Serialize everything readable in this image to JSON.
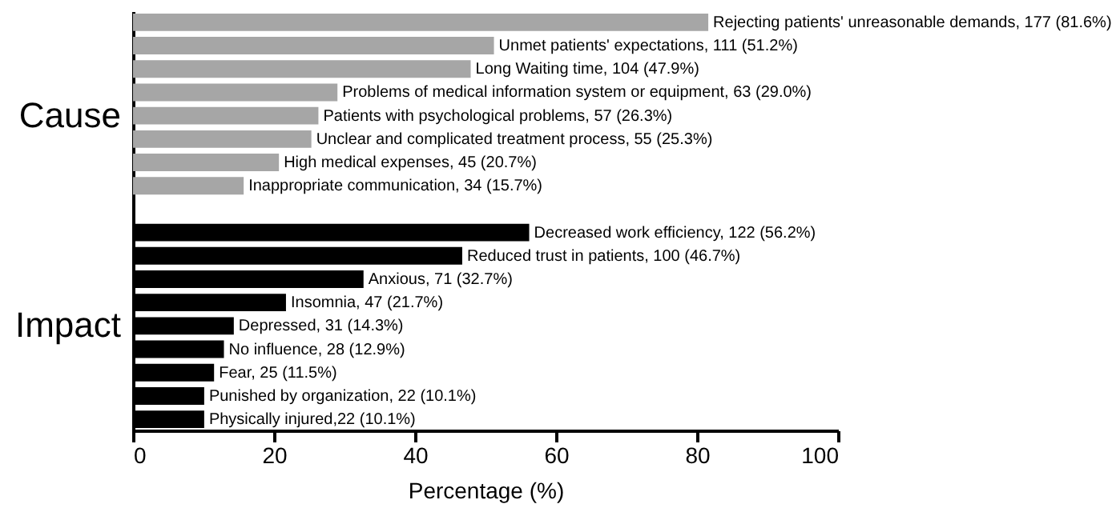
{
  "chart_data": {
    "type": "bar",
    "orientation": "horizontal",
    "xlabel": "Percentage (%)",
    "xlim": [
      0,
      100
    ],
    "xticks": [
      0,
      20,
      40,
      60,
      80,
      100
    ],
    "grid": false,
    "categories": [
      null,
      null,
      null,
      null,
      null,
      null,
      null,
      null,
      null,
      null,
      null,
      null,
      null,
      null,
      null,
      null,
      null,
      null
    ],
    "series": [
      {
        "name": "Cause",
        "color": "#a6a6a6",
        "values": [
          81.6,
          51.2,
          47.9,
          29.0,
          26.3,
          25.3,
          20.7,
          15.7,
          null,
          null,
          null,
          null,
          null,
          null,
          null,
          null,
          null,
          null
        ],
        "value_labels": [
          "Rejecting patients' unreasonable demands, 177 (81.6%)",
          "Unmet patients' expectations, 111 (51.2%)",
          "Long Waiting time, 104 (47.9%)",
          "Problems of medical information system or equipment, 63 (29.0%)",
          "Patients with psychological problems, 57 (26.3%)",
          "Unclear and complicated treatment process, 55 (25.3%)",
          "High medical expenses, 45 (20.7%)",
          "Inappropriate communication, 34 (15.7%)",
          null,
          null,
          null,
          null,
          null,
          null,
          null,
          null,
          null,
          null
        ]
      },
      {
        "name": "Impact",
        "color": "#000000",
        "values": [
          null,
          null,
          null,
          null,
          null,
          null,
          null,
          null,
          null,
          56.2,
          46.7,
          32.7,
          21.7,
          14.3,
          12.9,
          11.5,
          10.1,
          10.1
        ],
        "value_labels": [
          null,
          null,
          null,
          null,
          null,
          null,
          null,
          null,
          null,
          "Decreased work efficiency, 122 (56.2%)",
          "Reduced trust in patients, 100 (46.7%)",
          "Anxious, 71 (32.7%)",
          "Insomnia, 47 (21.7%)",
          "Depressed, 31 (14.3%)",
          "No influence, 28 (12.9%)",
          "Fear, 25 (11.5%)",
          "Punished by organization, 22 (10.1%)",
          "Physically injured,22 (10.1%)"
        ]
      }
    ]
  }
}
